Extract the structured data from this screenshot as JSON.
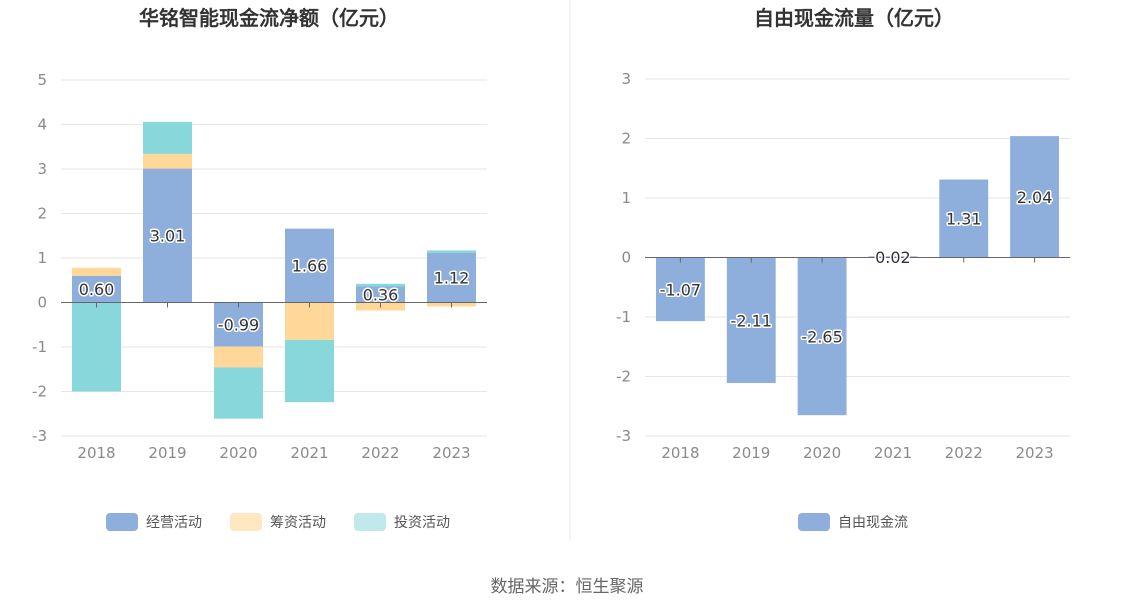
{
  "chart_data": [
    {
      "type": "bar",
      "stacked": true,
      "title": "华铭智能现金流净额（亿元）",
      "categories": [
        "2018",
        "2019",
        "2020",
        "2021",
        "2022",
        "2023"
      ],
      "ylim": [
        -3,
        5
      ],
      "yticks": [
        5,
        4,
        3,
        2,
        1,
        0,
        -1,
        -2,
        -3
      ],
      "series": [
        {
          "name": "经营活动",
          "color": "#8eaedb",
          "values": [
            0.6,
            3.01,
            -0.99,
            1.66,
            0.36,
            1.12
          ],
          "labels": [
            "0.60",
            "3.01",
            "-0.99",
            "1.66",
            "0.36",
            "1.12"
          ]
        },
        {
          "name": "筹资活动",
          "color": "#ffd899",
          "values": [
            0.18,
            0.33,
            -0.47,
            -0.84,
            -0.18,
            -0.09
          ]
        },
        {
          "name": "投资活动",
          "color": "#88d8db",
          "values": [
            -2.0,
            0.72,
            -1.15,
            -1.4,
            0.06,
            0.05
          ]
        }
      ],
      "legend": [
        {
          "name": "经营活动",
          "color": "#8eaedb"
        },
        {
          "name": "筹资活动",
          "color": "#ffe7c2"
        },
        {
          "name": "投资活动",
          "color": "#c0e9eb"
        }
      ]
    },
    {
      "type": "bar",
      "title": "自由现金流量（亿元）",
      "categories": [
        "2018",
        "2019",
        "2020",
        "2021",
        "2022",
        "2023"
      ],
      "ylim": [
        -3,
        3
      ],
      "yticks": [
        3,
        2,
        1,
        0,
        -1,
        -2,
        -3
      ],
      "series": [
        {
          "name": "自由现金流",
          "color": "#8eaedb",
          "values": [
            -1.07,
            -2.11,
            -2.65,
            0.02,
            1.31,
            2.04
          ],
          "labels": [
            "-1.07",
            "-2.11",
            "-2.65",
            "0.02",
            "1.31",
            "2.04"
          ]
        }
      ],
      "legend": [
        {
          "name": "自由现金流",
          "color": "#8eaedb"
        }
      ]
    }
  ],
  "source": "数据来源：恒生聚源"
}
